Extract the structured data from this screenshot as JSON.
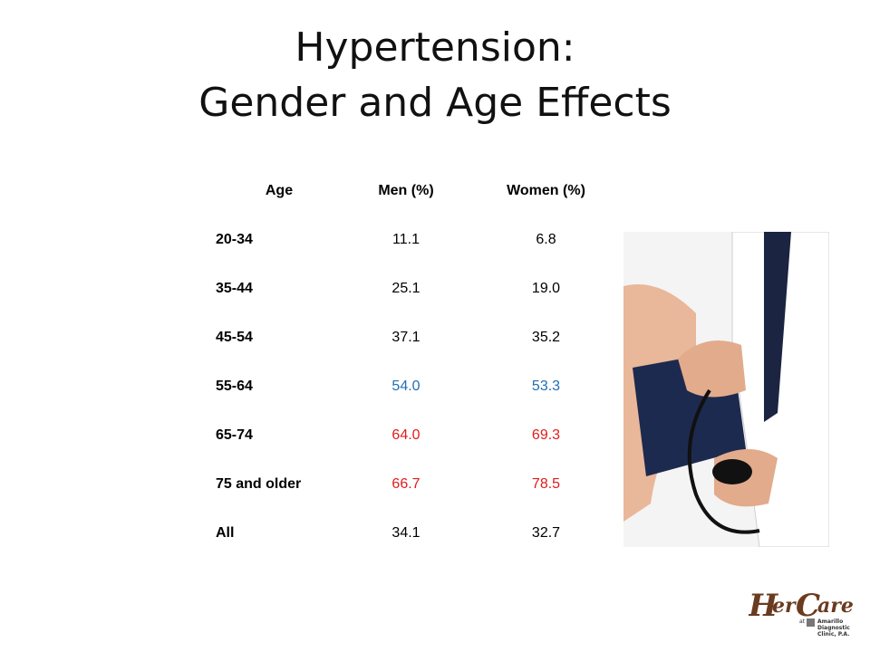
{
  "title": {
    "line1": "Hypertension:",
    "line2": "Gender and Age Effects"
  },
  "table": {
    "headers": [
      "Age",
      "Men (%)",
      "Women (%)"
    ],
    "rows": [
      {
        "age": "20-34",
        "men": "11.1",
        "women": "6.8",
        "color": "#000000"
      },
      {
        "age": "35-44",
        "men": "25.1",
        "women": "19.0",
        "color": "#000000"
      },
      {
        "age": "45-54",
        "men": "37.1",
        "women": "35.2",
        "color": "#000000"
      },
      {
        "age": "55-64",
        "men": "54.0",
        "women": "53.3",
        "color": "#1f6fb5"
      },
      {
        "age": "65-74",
        "men": "64.0",
        "women": "69.3",
        "color": "#e01b1b"
      },
      {
        "age": "75 and older",
        "men": "66.7",
        "women": "78.5",
        "color": "#e01b1b"
      },
      {
        "age": "All",
        "men": "34.1",
        "women": "32.7",
        "color": "#000000"
      }
    ]
  },
  "logo": {
    "brand_part1": "Her",
    "brand_part2": "Care",
    "sub_at": "at",
    "sub_clinic": [
      "Amarillo",
      "Diagnostic",
      "Clinic, P.A."
    ]
  },
  "colors": {
    "accent_blue": "#1f6fb5",
    "accent_red": "#e01b1b",
    "logo_brown": "#6b3b1f"
  }
}
